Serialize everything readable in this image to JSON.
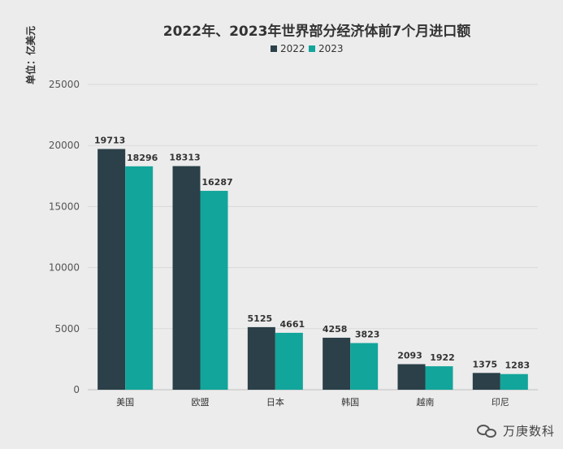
{
  "chart_data": {
    "type": "bar",
    "title": "2022年、2023年世界部分经济体前7个月进口额",
    "ylabel": "单位：亿美元",
    "xlabel": "",
    "categories": [
      "美国",
      "欧盟",
      "日本",
      "韩国",
      "越南",
      "印尼"
    ],
    "series": [
      {
        "name": "2022",
        "values": [
          19713,
          18313,
          5125,
          4258,
          2093,
          1375
        ],
        "color": "#2b4048"
      },
      {
        "name": "2023",
        "values": [
          18296,
          16287,
          4661,
          3823,
          1922,
          1283
        ],
        "color": "#12a59b"
      }
    ],
    "ylim": [
      0,
      25000
    ],
    "yticks": [
      0,
      5000,
      10000,
      15000,
      20000,
      25000
    ],
    "grid": true,
    "legend_position": "top-center"
  },
  "watermark": {
    "text": "万庚数科",
    "icon": "wechat-icon"
  }
}
